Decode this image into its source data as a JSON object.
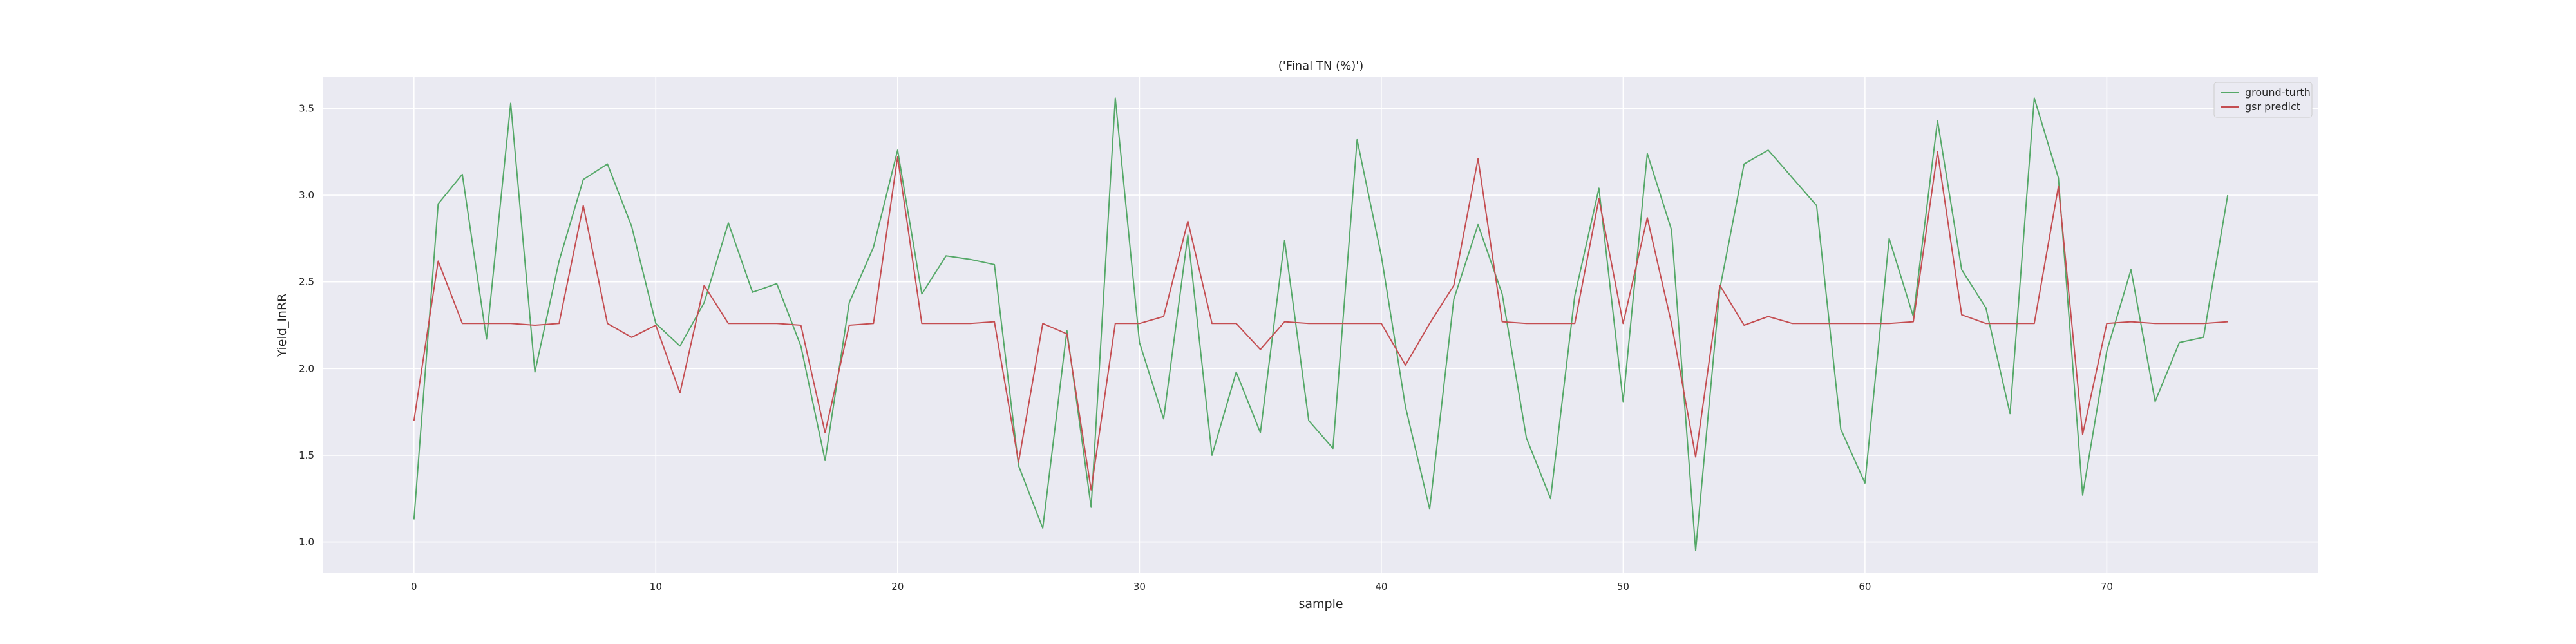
{
  "chart_data": {
    "type": "line",
    "title": "('Final TN (%)')",
    "xlabel": "sample",
    "ylabel": "Yield_InRR",
    "xlim": [
      -3.75,
      78.75
    ],
    "ylim": [
      0.82,
      3.68
    ],
    "xticks": [
      0,
      10,
      20,
      30,
      40,
      50,
      60,
      70
    ],
    "yticks": [
      1.0,
      1.5,
      2.0,
      2.5,
      3.0,
      3.5
    ],
    "grid": true,
    "legend_position": "top-right",
    "background": "#eaeaf2",
    "series": [
      {
        "name": "ground-turth",
        "color": "#55a868",
        "x": [
          0,
          1,
          2,
          3,
          4,
          5,
          6,
          7,
          8,
          9,
          10,
          11,
          12,
          13,
          14,
          15,
          16,
          17,
          18,
          19,
          20,
          21,
          22,
          23,
          24,
          25,
          26,
          27,
          28,
          29,
          30,
          31,
          32,
          33,
          34,
          35,
          36,
          37,
          38,
          39,
          40,
          41,
          42,
          43,
          44,
          45,
          46,
          47,
          48,
          49,
          50,
          51,
          52,
          53,
          54,
          55,
          56,
          57,
          58,
          59,
          60,
          61,
          62,
          63,
          64,
          65,
          66,
          67,
          68,
          69,
          70,
          71,
          72,
          73,
          74,
          75
        ],
        "values": [
          1.13,
          2.95,
          3.12,
          2.17,
          3.53,
          1.98,
          2.62,
          3.09,
          3.18,
          2.82,
          2.26,
          2.13,
          2.38,
          2.84,
          2.44,
          2.49,
          2.13,
          1.47,
          2.38,
          2.7,
          3.26,
          2.43,
          2.65,
          2.63,
          2.6,
          1.44,
          1.08,
          2.22,
          1.2,
          3.56,
          2.15,
          1.71,
          2.77,
          1.5,
          1.98,
          1.63,
          2.74,
          1.7,
          1.54,
          3.32,
          2.65,
          1.78,
          1.19,
          2.4,
          2.83,
          2.43,
          1.6,
          1.25,
          2.42,
          3.04,
          1.81,
          3.24,
          2.8,
          0.95,
          2.46,
          3.18,
          3.26,
          3.1,
          2.94,
          1.65,
          1.34,
          2.75,
          2.3,
          3.43,
          2.57,
          2.35,
          1.74,
          3.56,
          3.1,
          1.27,
          2.1,
          2.57,
          1.81,
          2.15,
          2.18,
          3.0
        ]
      },
      {
        "name": "gsr predict",
        "color": "#c44e52",
        "x": [
          0,
          1,
          2,
          3,
          4,
          5,
          6,
          7,
          8,
          9,
          10,
          11,
          12,
          13,
          14,
          15,
          16,
          17,
          18,
          19,
          20,
          21,
          22,
          23,
          24,
          25,
          26,
          27,
          28,
          29,
          30,
          31,
          32,
          33,
          34,
          35,
          36,
          37,
          38,
          39,
          40,
          41,
          42,
          43,
          44,
          45,
          46,
          47,
          48,
          49,
          50,
          51,
          52,
          53,
          54,
          55,
          56,
          57,
          58,
          59,
          60,
          61,
          62,
          63,
          64,
          65,
          66,
          67,
          68,
          69,
          70,
          71,
          72,
          73,
          74,
          75
        ],
        "values": [
          1.7,
          2.62,
          2.26,
          2.26,
          2.26,
          2.25,
          2.26,
          2.94,
          2.26,
          2.18,
          2.25,
          1.86,
          2.48,
          2.26,
          2.26,
          2.26,
          2.25,
          1.63,
          2.25,
          2.26,
          3.22,
          2.26,
          2.26,
          2.26,
          2.27,
          1.46,
          2.26,
          2.2,
          1.3,
          2.26,
          2.26,
          2.3,
          2.85,
          2.26,
          2.26,
          2.11,
          2.27,
          2.26,
          2.26,
          2.26,
          2.26,
          2.02,
          2.26,
          2.48,
          3.21,
          2.27,
          2.26,
          2.26,
          2.26,
          2.98,
          2.26,
          2.87,
          2.26,
          1.49,
          2.48,
          2.25,
          2.3,
          2.26,
          2.26,
          2.26,
          2.26,
          2.26,
          2.27,
          3.25,
          2.31,
          2.26,
          2.26,
          2.26,
          3.05,
          1.62,
          2.26,
          2.27,
          2.26,
          2.26,
          2.26,
          2.27
        ]
      }
    ]
  }
}
